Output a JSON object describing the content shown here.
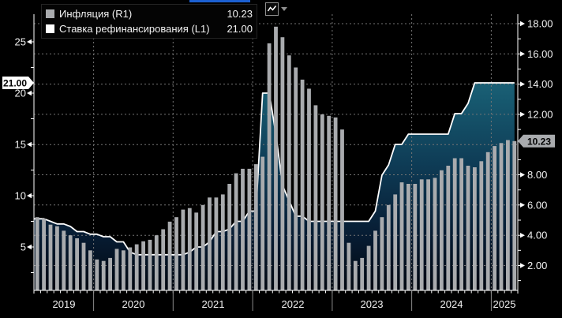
{
  "window": {
    "active_panel_strip_color": "#1c60d2"
  },
  "toolbar": {
    "chart_type_button_icon": "line-chart-icon",
    "dropdown_icon": "chevron-down-icon"
  },
  "legend": {
    "items": [
      {
        "label": "Инфляция (R1)",
        "value": "10.23",
        "swatch_color": "#a9abae"
      },
      {
        "label": "Ставка рефинансирования (L1)",
        "value": "21.00",
        "swatch_color": "#ffffff"
      }
    ]
  },
  "chart_data": {
    "type": "combo",
    "title": "",
    "grid": true,
    "x_start_month": "2019-04",
    "x_end_month": "2025-04",
    "x_axis": {
      "year_labels": [
        "2019",
        "2020",
        "2021",
        "2022",
        "2023",
        "2024",
        "2025"
      ]
    },
    "left_axis": {
      "tick_labels": [
        "5",
        "10",
        "15",
        "20",
        "25"
      ],
      "minor_tick_step": 2.5,
      "tag": "21.00",
      "tag_color": "#ffffff"
    },
    "right_axis": {
      "tick_labels": [
        "2.00",
        "4.00",
        "6.00",
        "8.00",
        "10.00",
        "12.00",
        "14.00",
        "16.00",
        "18.00"
      ],
      "minor_tick_step": 1,
      "tag": "10.23",
      "tag_color": "#a9abae"
    },
    "series": [
      {
        "name": "Инфляция",
        "type": "bar",
        "axis": "right",
        "color": "#a9abae",
        "values": [
          5.2,
          5.1,
          4.7,
          4.6,
          4.3,
          4.0,
          3.8,
          3.5,
          3.0,
          2.4,
          2.3,
          2.5,
          3.1,
          3.0,
          3.2,
          3.4,
          3.6,
          3.7,
          4.0,
          4.4,
          4.9,
          5.2,
          5.7,
          5.8,
          5.5,
          6.0,
          6.5,
          6.5,
          6.7,
          7.4,
          8.1,
          8.4,
          8.4,
          8.7,
          9.2,
          16.7,
          17.8,
          17.1,
          15.9,
          15.1,
          14.3,
          13.7,
          12.6,
          12.0,
          11.9,
          11.8,
          11.0,
          3.5,
          2.3,
          2.5,
          3.3,
          4.3,
          5.2,
          6.0,
          6.7,
          7.5,
          7.4,
          7.4,
          7.7,
          7.7,
          7.8,
          8.3,
          8.6,
          9.1,
          9.1,
          8.6,
          8.5,
          8.9,
          9.5,
          9.9,
          10.1,
          10.3,
          10.23
        ]
      },
      {
        "name": "Ставка рефинансирования",
        "type": "line-area",
        "axis": "left",
        "color": "#ffffff",
        "fill_gradient": [
          "#2e7d90",
          "#175a70",
          "#0e3b55",
          "#071c33",
          "#020811"
        ],
        "values": [
          7.75,
          7.75,
          7.5,
          7.25,
          7.25,
          7.0,
          6.5,
          6.5,
          6.25,
          6.25,
          6.0,
          6.0,
          5.5,
          5.5,
          4.5,
          4.25,
          4.25,
          4.25,
          4.25,
          4.25,
          4.25,
          4.25,
          4.25,
          4.5,
          5.0,
          5.0,
          5.5,
          6.5,
          6.5,
          6.75,
          7.5,
          7.5,
          8.5,
          8.5,
          20.0,
          20.0,
          16.0,
          11.0,
          9.5,
          8.0,
          8.0,
          7.5,
          7.5,
          7.5,
          7.5,
          7.5,
          7.5,
          7.5,
          7.5,
          7.5,
          7.5,
          8.5,
          12.0,
          13.0,
          15.0,
          15.0,
          16.0,
          16.0,
          16.0,
          16.0,
          16.0,
          16.0,
          16.0,
          18.0,
          18.0,
          19.0,
          21.0,
          21.0,
          21.0,
          21.0,
          21.0,
          21.0,
          21.0
        ]
      }
    ]
  }
}
